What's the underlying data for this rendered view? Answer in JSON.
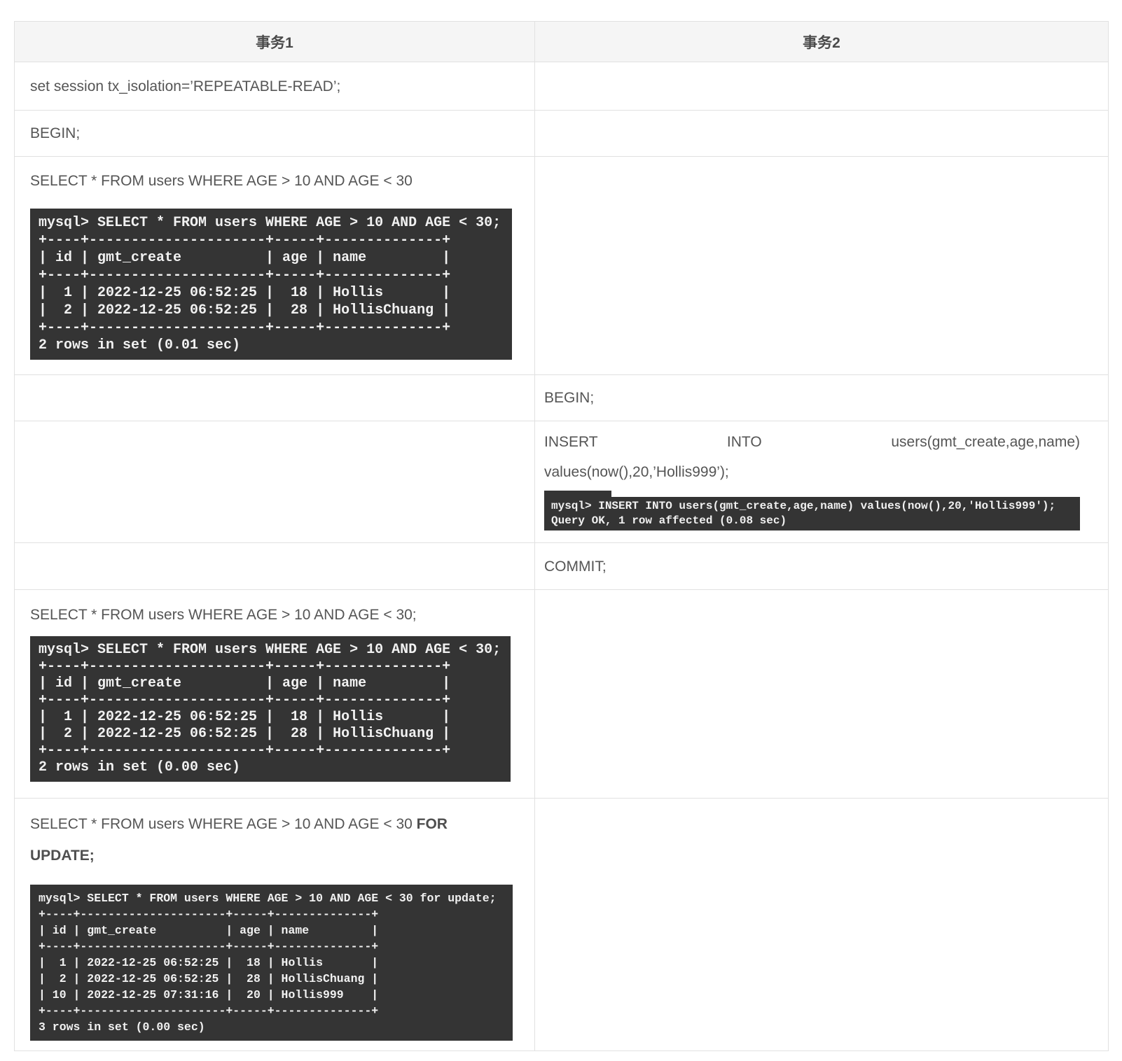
{
  "headers": {
    "tx1": "事务1",
    "tx2": "事务2"
  },
  "colors": {
    "terminal_bg": "#343434",
    "terminal_text": "#f1f1f1",
    "header_bg": "#f5f5f5",
    "body_text": "#555555",
    "border": "#e1e1e1"
  },
  "tx1": {
    "set_isolation": "set session tx_isolation=’REPEATABLE-READ’;",
    "begin": "BEGIN;",
    "select1": "SELECT * FROM users WHERE AGE > 10 AND AGE < 30",
    "select1_output": "mysql> SELECT * FROM users WHERE AGE > 10 AND AGE < 30;\n+----+---------------------+-----+--------------+\n| id | gmt_create          | age | name         |\n+----+---------------------+-----+--------------+\n|  1 | 2022-12-25 06:52:25 |  18 | Hollis       |\n|  2 | 2022-12-25 06:52:25 |  28 | HollisChuang |\n+----+---------------------+-----+--------------+\n2 rows in set (0.01 sec)",
    "select2": "SELECT * FROM users WHERE AGE > 10 AND AGE < 30;",
    "select2_output": "mysql> SELECT * FROM users WHERE AGE > 10 AND AGE < 30;\n+----+---------------------+-----+--------------+\n| id | gmt_create          | age | name         |\n+----+---------------------+-----+--------------+\n|  1 | 2022-12-25 06:52:25 |  18 | Hollis       |\n|  2 | 2022-12-25 06:52:25 |  28 | HollisChuang |\n+----+---------------------+-----+--------------+\n2 rows in set (0.00 sec)",
    "select3_part1": "SELECT * FROM users WHERE AGE > 10 AND AGE < 30 ",
    "select3_bold_line1": "FOR",
    "select3_bold_line2": "UPDATE;",
    "select3_output": "mysql> SELECT * FROM users WHERE AGE > 10 AND AGE < 30 for update;\n+----+---------------------+-----+--------------+\n| id | gmt_create          | age | name         |\n+----+---------------------+-----+--------------+\n|  1 | 2022-12-25 06:52:25 |  18 | Hollis       |\n|  2 | 2022-12-25 06:52:25 |  28 | HollisChuang |\n| 10 | 2022-12-25 07:31:16 |  20 | Hollis999    |\n+----+---------------------+-----+--------------+\n3 rows in set (0.00 sec)"
  },
  "tx2": {
    "begin": "BEGIN;",
    "insert_line1": "INSERT INTO users(gmt_create,age,name)",
    "insert_line2": "values(now(),20,’Hollis999’);",
    "insert_fragment": "-+--+-",
    "insert_output": "mysql> INSERT INTO users(gmt_create,age,name) values(now(),20,'Hollis999');\nQuery OK, 1 row affected (0.08 sec)",
    "commit": "COMMIT;"
  }
}
